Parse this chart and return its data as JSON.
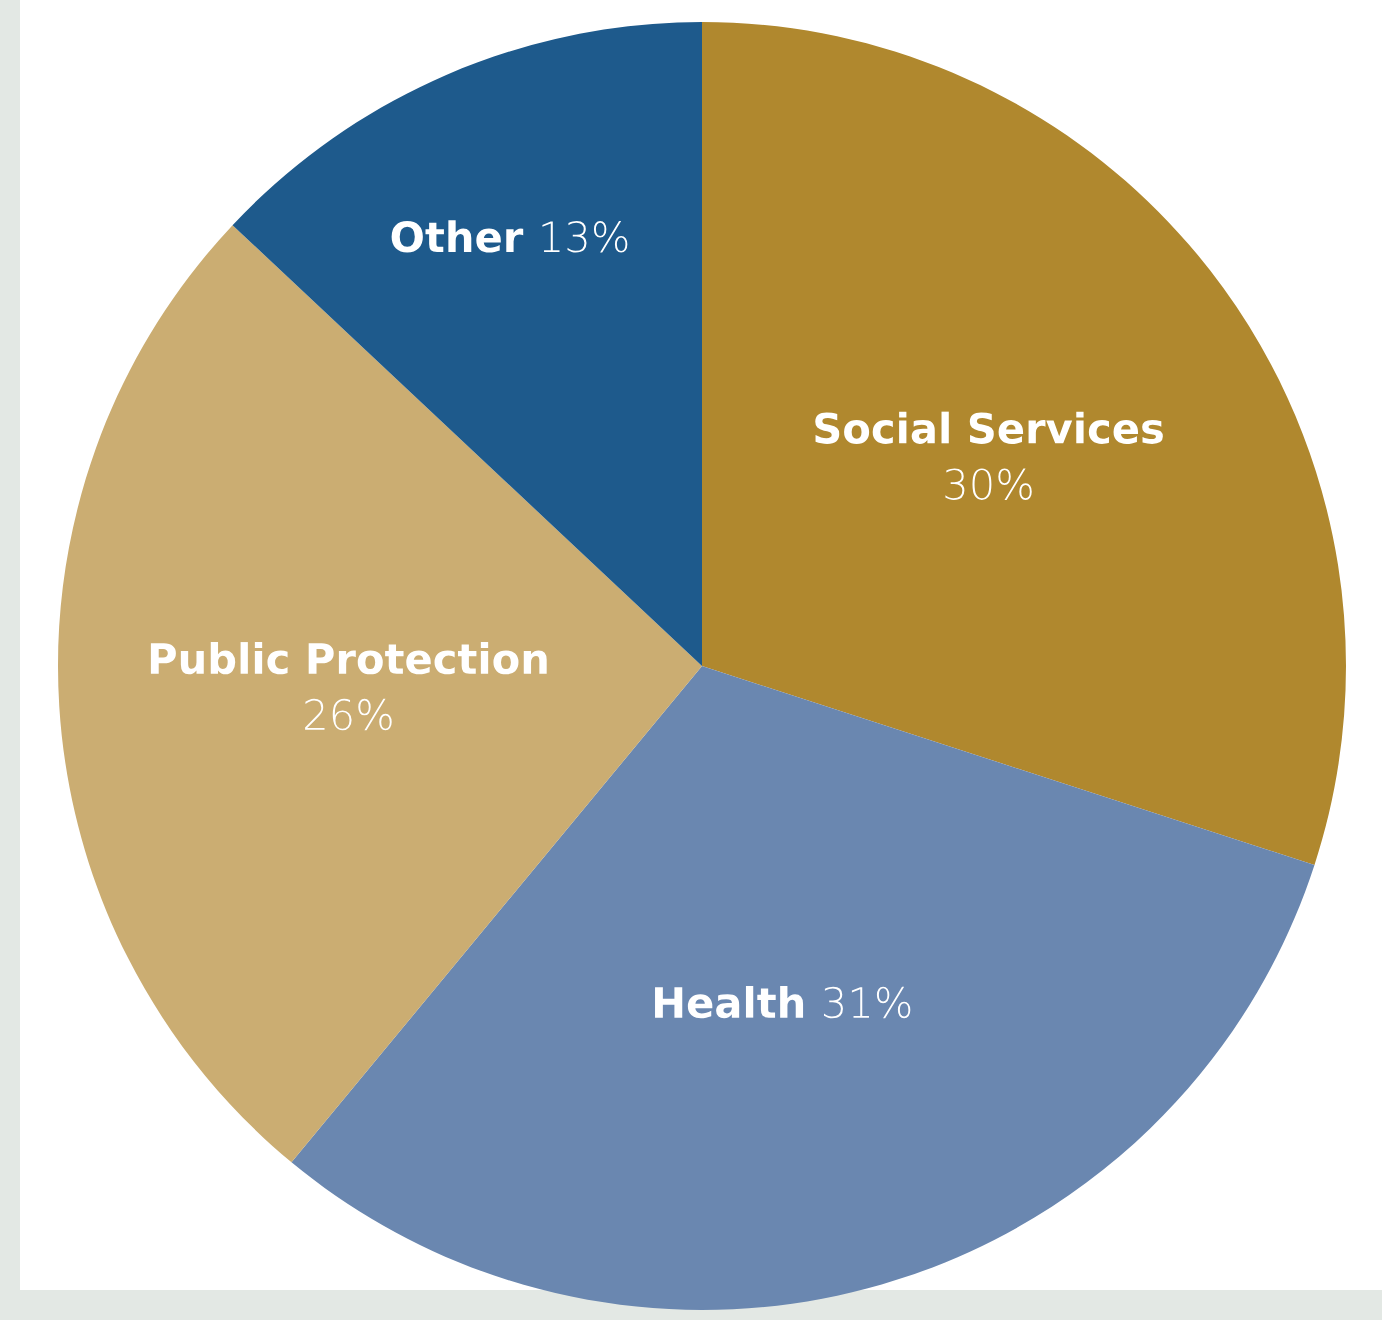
{
  "chart_data": {
    "type": "pie",
    "categories": [
      "Social Services",
      "Health",
      "Public Protection",
      "Other"
    ],
    "values": [
      30,
      31,
      26,
      13
    ],
    "value_labels": [
      "30%",
      "31%",
      "26%",
      "13%"
    ],
    "colors": [
      "#b0882e",
      "#6a87b0",
      "#cbad72",
      "#1e5a8c"
    ],
    "legend": false
  }
}
